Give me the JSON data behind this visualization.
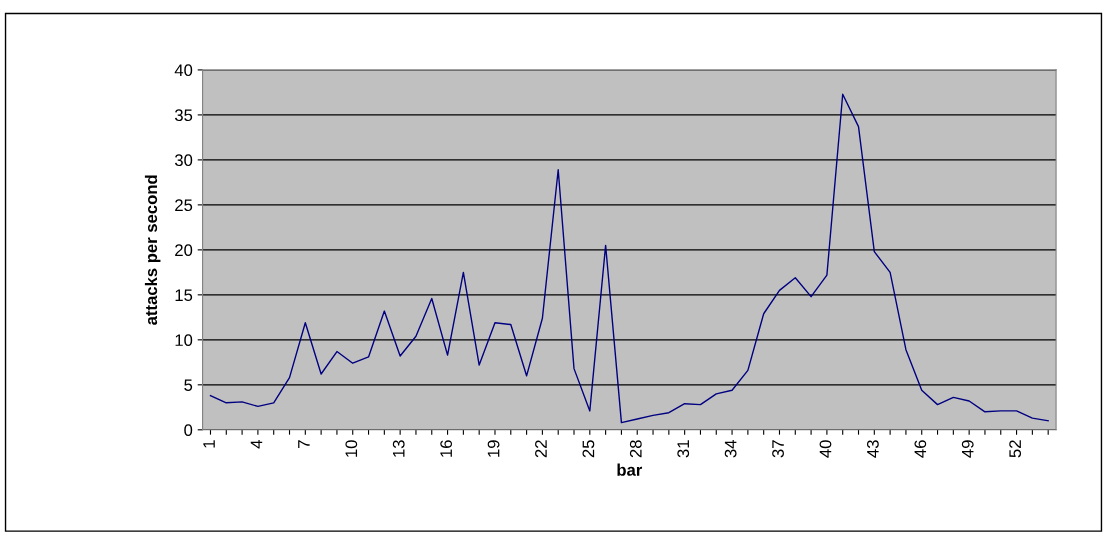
{
  "chart_data": {
    "type": "line",
    "xlabel": "bar",
    "ylabel": "attacks per second",
    "categories": [
      "1",
      null,
      null,
      "4",
      null,
      null,
      "7",
      null,
      null,
      "10",
      null,
      null,
      "13",
      null,
      null,
      "16",
      null,
      null,
      "19",
      null,
      null,
      "22",
      null,
      null,
      "25",
      null,
      null,
      "28",
      null,
      null,
      "31",
      null,
      null,
      "34",
      null,
      null,
      "37",
      null,
      null,
      "40",
      null,
      null,
      "43",
      null,
      null,
      "46",
      null,
      null,
      "49",
      null,
      null,
      "52",
      null,
      null
    ],
    "series": [
      {
        "color": "#000080",
        "values": [
          3.8,
          3.0,
          3.1,
          2.6,
          3.0,
          5.8,
          11.9,
          6.2,
          8.7,
          7.4,
          8.1,
          13.2,
          8.2,
          10.4,
          14.6,
          8.3,
          17.5,
          7.2,
          11.9,
          11.7,
          6.0,
          12.4,
          28.9,
          6.8,
          2.1,
          20.5,
          0.8,
          1.2,
          1.6,
          1.9,
          2.9,
          2.8,
          4.0,
          4.4,
          6.6,
          12.9,
          15.5,
          16.9,
          14.8,
          17.2,
          37.3,
          33.7,
          19.8,
          17.5,
          8.9,
          4.4,
          2.8,
          3.6,
          3.2,
          2.0,
          2.1,
          2.1,
          1.3,
          1.0
        ]
      }
    ],
    "ylim": [
      0,
      40
    ],
    "yticks": [
      0,
      5,
      10,
      15,
      20,
      25,
      30,
      35,
      40
    ],
    "grid": "y",
    "marker": "none",
    "line_style": "solid"
  }
}
